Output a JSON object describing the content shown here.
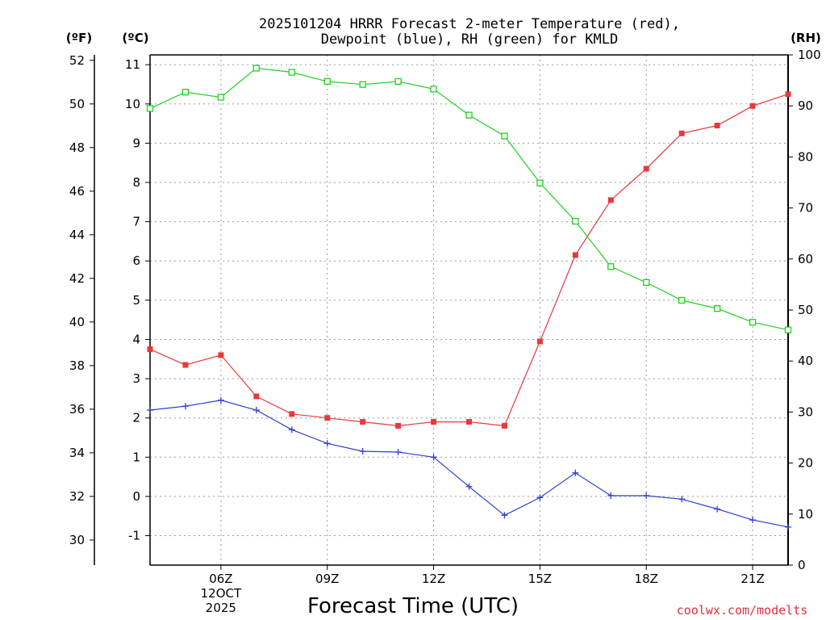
{
  "chart_data": {
    "type": "line",
    "title_line1": "2025101204 HRRR Forecast 2-meter Temperature (red),",
    "title_line2": "Dewpoint (blue), RH (green) for KMLD",
    "xlabel": "Forecast Time (UTC)",
    "credit": "coolwx.com/modelts",
    "units": {
      "fahrenheit": "(ºF)",
      "celsius": "(ºC)",
      "rh": "(RH)"
    },
    "x_hours": [
      4,
      5,
      6,
      7,
      8,
      9,
      10,
      11,
      12,
      13,
      14,
      15,
      16,
      17,
      18,
      19,
      20,
      21,
      22
    ],
    "x_ticks": [
      {
        "hour": 6,
        "label": "06Z",
        "sub1": "12OCT",
        "sub2": "2025"
      },
      {
        "hour": 9,
        "label": "09Z"
      },
      {
        "hour": 12,
        "label": "12Z"
      },
      {
        "hour": 15,
        "label": "15Z"
      },
      {
        "hour": 18,
        "label": "18Z"
      },
      {
        "hour": 21,
        "label": "21Z"
      }
    ],
    "xlim": [
      4,
      22
    ],
    "ylim_c": [
      -1.75,
      11.25
    ],
    "ylim_rh": [
      0,
      100
    ],
    "c_ticks": [
      "-1",
      "0",
      "1",
      "2",
      "3",
      "4",
      "5",
      "6",
      "7",
      "8",
      "9",
      "10",
      "11"
    ],
    "f_ticks": [
      "30",
      "32",
      "34",
      "36",
      "38",
      "40",
      "42",
      "44",
      "46",
      "48",
      "50",
      "52"
    ],
    "rh_ticks": [
      "0",
      "10",
      "20",
      "30",
      "40",
      "50",
      "60",
      "70",
      "80",
      "90",
      "100"
    ],
    "series": [
      {
        "name": "Temperature",
        "unit": "C",
        "color": "#e8383d",
        "marker": "filled-square",
        "values": [
          3.75,
          3.35,
          3.6,
          2.55,
          2.1,
          2.0,
          1.9,
          1.8,
          1.9,
          1.9,
          1.8,
          3.95,
          6.15,
          7.55,
          8.35,
          9.25,
          9.45,
          9.95,
          10.25
        ]
      },
      {
        "name": "Dewpoint",
        "unit": "C",
        "color": "#2e3fd6",
        "marker": "plus",
        "values": [
          2.2,
          2.3,
          2.45,
          2.2,
          1.7,
          1.35,
          1.15,
          1.13,
          1.0,
          0.25,
          -0.48,
          -0.03,
          0.6,
          0.02,
          0.02,
          -0.07,
          -0.32,
          -0.6,
          -0.78
        ]
      },
      {
        "name": "RH",
        "unit": "%",
        "color": "#1ed21e",
        "marker": "open-square",
        "values": [
          89.5,
          92.7,
          91.7,
          97.4,
          96.6,
          94.8,
          94.2,
          94.8,
          93.3,
          88.2,
          84.1,
          74.9,
          67.4,
          58.5,
          55.4,
          51.9,
          50.3,
          47.6,
          46.1
        ]
      }
    ]
  }
}
